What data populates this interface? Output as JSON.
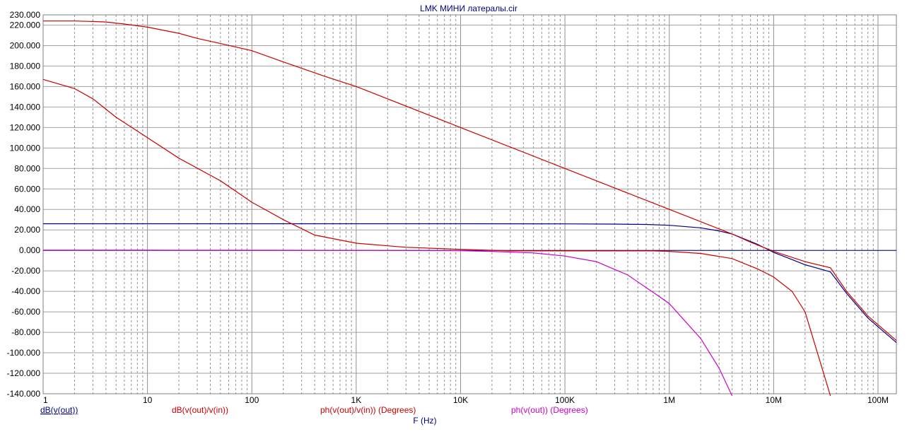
{
  "chart_data": {
    "type": "line",
    "title": "LMK МИНИ латералы.cir",
    "xlabel": "F (Hz)",
    "ylabel": "",
    "x_scale": "log",
    "xlim": [
      1,
      150000000
    ],
    "ylim": [
      -140,
      230
    ],
    "grid": true,
    "x_tick_values": [
      1,
      10,
      100,
      1000,
      10000,
      100000,
      1000000,
      10000000,
      100000000
    ],
    "x_tick_labels": [
      "1",
      "10",
      "100",
      "1K",
      "10K",
      "100K",
      "1M",
      "10M",
      "100M"
    ],
    "y_tick_values": [
      230,
      220,
      200,
      180,
      160,
      140,
      120,
      100,
      80,
      60,
      40,
      20,
      0,
      -20,
      -40,
      -60,
      -80,
      -100,
      -120,
      -140
    ],
    "y_tick_labels": [
      "230.000",
      "220.000",
      "200.000",
      "180.000",
      "160.000",
      "140.000",
      "120.000",
      "100.000",
      "80.000",
      "60.000",
      "40.000",
      "20.000",
      "0.000",
      "-20.000",
      "-40.000",
      "-60.000",
      "-80.000",
      "-100.000",
      "-120.000",
      "-140.000"
    ],
    "zero_line_color": "#000080",
    "series": [
      {
        "name": "dB(v(out))",
        "color": "#000080",
        "points": [
          [
            1,
            26
          ],
          [
            10,
            26
          ],
          [
            100,
            26
          ],
          [
            1000,
            26
          ],
          [
            10000,
            26
          ],
          [
            100000,
            25.9
          ],
          [
            300000,
            25.7
          ],
          [
            600000,
            25.3
          ],
          [
            1000000,
            24.5
          ],
          [
            2000000,
            22
          ],
          [
            3000000,
            19
          ],
          [
            4000000,
            16
          ],
          [
            5000000,
            12
          ],
          [
            7000000,
            6
          ],
          [
            10000000,
            -2
          ],
          [
            15000000,
            -9
          ],
          [
            20000000,
            -14
          ],
          [
            35000000,
            -21
          ],
          [
            50000000,
            -42
          ],
          [
            80000000,
            -66
          ],
          [
            150000000,
            -90
          ]
        ]
      },
      {
        "name": "dB(v(out)/v(in))",
        "color": "#cc0000",
        "points": [
          [
            1,
            224
          ],
          [
            2,
            224
          ],
          [
            3,
            223.5
          ],
          [
            4,
            223
          ],
          [
            6,
            221
          ],
          [
            10,
            218
          ],
          [
            20,
            212
          ],
          [
            30,
            207
          ],
          [
            50,
            202
          ],
          [
            100,
            195
          ],
          [
            200,
            184
          ],
          [
            500,
            170
          ],
          [
            1000,
            160
          ],
          [
            10000,
            120
          ],
          [
            100000,
            80
          ],
          [
            1000000,
            40
          ],
          [
            2000000,
            28
          ],
          [
            4000000,
            16
          ],
          [
            6000000,
            8
          ],
          [
            10000000,
            -1
          ],
          [
            20000000,
            -11
          ],
          [
            35000000,
            -17
          ],
          [
            50000000,
            -40
          ],
          [
            80000000,
            -64
          ],
          [
            150000000,
            -88
          ]
        ]
      },
      {
        "name": "ph(v(out)/v(in)) (Degrees)",
        "color": "#cc0000",
        "points": [
          [
            1,
            167
          ],
          [
            2,
            158
          ],
          [
            3,
            148
          ],
          [
            5,
            130
          ],
          [
            10,
            110
          ],
          [
            20,
            90
          ],
          [
            50,
            68
          ],
          [
            100,
            47
          ],
          [
            200,
            30
          ],
          [
            400,
            15
          ],
          [
            1000,
            7
          ],
          [
            3000,
            3
          ],
          [
            10000,
            1
          ],
          [
            30000,
            -0.5
          ],
          [
            100000,
            -0.5
          ],
          [
            300000,
            -0.5
          ],
          [
            700000,
            -0.5
          ],
          [
            1000000,
            -1
          ],
          [
            2000000,
            -3
          ],
          [
            4000000,
            -8
          ],
          [
            7000000,
            -18
          ],
          [
            10000000,
            -26
          ],
          [
            15000000,
            -40
          ],
          [
            20000000,
            -60
          ],
          [
            35000000,
            -142
          ]
        ]
      },
      {
        "name": "ph(v(out)) (Degrees)",
        "color": "#cc00cc",
        "points": [
          [
            1,
            0.3
          ],
          [
            10,
            0.2
          ],
          [
            100,
            0.1
          ],
          [
            1000,
            0
          ],
          [
            10000,
            -0.3
          ],
          [
            20000,
            -1
          ],
          [
            50000,
            -2.5
          ],
          [
            100000,
            -5.5
          ],
          [
            200000,
            -11
          ],
          [
            400000,
            -24
          ],
          [
            800000,
            -45
          ],
          [
            1000000,
            -52
          ],
          [
            2000000,
            -86
          ],
          [
            3000000,
            -115
          ],
          [
            4000000,
            -142
          ]
        ]
      }
    ]
  }
}
